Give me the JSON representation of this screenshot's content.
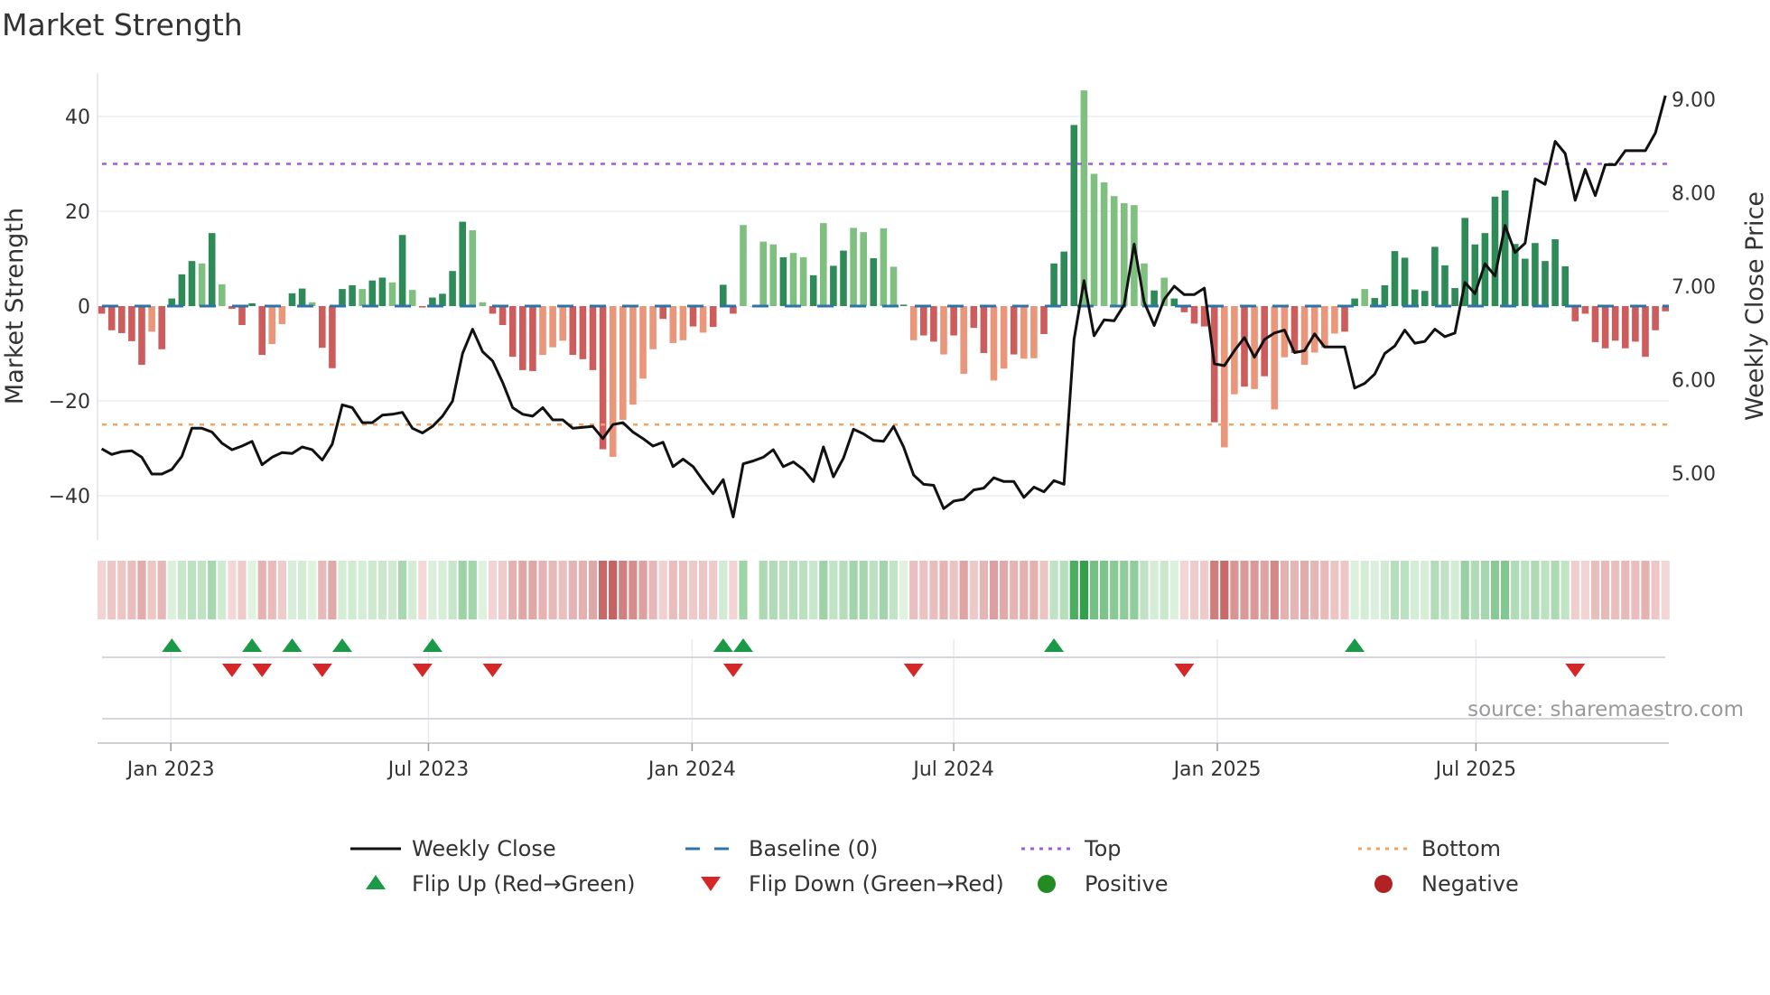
{
  "chart_data": {
    "type": "bar",
    "title": "Market Strength",
    "ylabel": "Market Strength",
    "y2label": "Weekly Close Price",
    "ylim": [
      -50,
      50
    ],
    "y2lim": [
      4.0,
      9.6
    ],
    "yticks": [
      {
        "v": 40,
        "label": "40"
      },
      {
        "v": 20,
        "label": "20"
      },
      {
        "v": 0,
        "label": "0"
      },
      {
        "v": -20,
        "label": "−20"
      },
      {
        "v": -40,
        "label": "−40"
      }
    ],
    "y2ticks": [
      {
        "v": 9,
        "label": "9.00"
      },
      {
        "v": 8,
        "label": "8.00"
      },
      {
        "v": 7,
        "label": "7.00"
      },
      {
        "v": 6,
        "label": "6.00"
      },
      {
        "v": 5,
        "label": "5.00"
      }
    ],
    "xticks": [
      {
        "i": 7.9,
        "label": "Jan 2023"
      },
      {
        "i": 33.6,
        "label": "Jul 2023"
      },
      {
        "i": 59.9,
        "label": "Jan 2024"
      },
      {
        "i": 86.0,
        "label": "Jul 2024"
      },
      {
        "i": 112.3,
        "label": "Jan 2025"
      },
      {
        "i": 138.1,
        "label": "Jul 2025"
      }
    ],
    "top_level": 30,
    "bottom_level": -25,
    "strength": [
      -1.6,
      -5.1,
      -5.7,
      -7.4,
      -12.4,
      -5.4,
      -9.1,
      1.6,
      6.7,
      9.5,
      9.0,
      15.4,
      4.6,
      -0.6,
      -4,
      0.6,
      -10.3,
      -8,
      -3.8,
      2.7,
      3.7,
      0.8,
      -8.8,
      -13.1,
      3.6,
      4.4,
      3.6,
      5.4,
      6.0,
      5.0,
      15,
      3.4,
      -0.3,
      1.8,
      2.6,
      7.4,
      17.8,
      16,
      0.8,
      -1.6,
      -4,
      -10.7,
      -13.5,
      -13.7,
      -10.3,
      -8.7,
      -7.3,
      -10.3,
      -11.2,
      -13.5,
      -30.2,
      -31.8,
      -24,
      -20.8,
      -15.3,
      -9.1,
      -2.7,
      -7.8,
      -7.2,
      -4.3,
      -5.6,
      -4.4,
      4.5,
      -1.6,
      17.1,
      0,
      13.6,
      13,
      10.3,
      11.2,
      10.3,
      6.5,
      17.5,
      8.5,
      11.7,
      16.5,
      15.6,
      10.1,
      16.4,
      8.3,
      0.3,
      -7.2,
      -6.2,
      -7.5,
      -10.2,
      -6.2,
      -14.3,
      -4.6,
      -9.9,
      -15.7,
      -13.2,
      -10.2,
      -11.1,
      -11,
      -5.9,
      9,
      11.5,
      38.2,
      45.5,
      27.9,
      26.1,
      23.2,
      21.7,
      21.3,
      9,
      3.3,
      6,
      1.6,
      -1.3,
      -3.7,
      -4.3,
      -24.5,
      -29.8,
      -18.6,
      -17,
      -17.5,
      -14.8,
      -21.8,
      -10.8,
      -9.9,
      -12.4,
      -9.8,
      -8.8,
      -5.8,
      -5.4,
      1.6,
      3.6,
      1.7,
      4.4,
      11.6,
      10.2,
      3.5,
      3.2,
      12.5,
      8.6,
      3.8,
      18.6,
      13,
      15.4,
      23.1,
      24.4,
      13.1,
      10,
      13.3,
      9.5,
      14.1,
      8.4,
      -3.2,
      -1.6,
      -7.6,
      -8.9,
      -7.3,
      -8.9,
      -7.5,
      -10.7,
      -5.1,
      -1.1
    ],
    "shade": "dddddldddd",
    "shade_rest": "ldlddddllddlddddlddldldddddlldddddlllddddllllldlldldddlllldlldlddlldlldlddldlddlldllddddllllllldldddddlldldlldllllddldd",
    "weekly_close": [
      5.26,
      5.2,
      5.23,
      5.24,
      5.17,
      4.99,
      4.99,
      5.04,
      5.18,
      5.48,
      5.48,
      5.44,
      5.32,
      5.25,
      5.29,
      5.34,
      5.09,
      5.17,
      5.22,
      5.21,
      5.28,
      5.25,
      5.14,
      5.31,
      5.73,
      5.7,
      5.54,
      5.54,
      5.62,
      5.63,
      5.65,
      5.48,
      5.43,
      5.5,
      5.61,
      5.77,
      6.28,
      6.54,
      6.3,
      6.2,
      5.97,
      5.7,
      5.63,
      5.61,
      5.7,
      5.57,
      5.57,
      5.48,
      5.49,
      5.5,
      5.37,
      5.52,
      5.54,
      5.44,
      5.37,
      5.29,
      5.33,
      5.07,
      5.15,
      5.07,
      4.92,
      4.78,
      4.93,
      4.53,
      5.1,
      5.13,
      5.17,
      5.25,
      5.07,
      5.12,
      5.04,
      4.91,
      5.28,
      4.96,
      5.16,
      5.47,
      5.42,
      5.35,
      5.34,
      5.5,
      5.28,
      4.98,
      4.88,
      4.87,
      4.62,
      4.7,
      4.72,
      4.82,
      4.84,
      4.95,
      4.91,
      4.91,
      4.74,
      4.85,
      4.8,
      4.92,
      4.88,
      6.43,
      7.06,
      6.47,
      6.64,
      6.63,
      6.8,
      7.45,
      6.83,
      6.58,
      6.86,
      7.0,
      6.91,
      6.91,
      6.98,
      6.17,
      6.15,
      6.31,
      6.45,
      6.24,
      6.43,
      6.5,
      6.53,
      6.29,
      6.31,
      6.49,
      6.35,
      6.35,
      6.35,
      5.91,
      5.96,
      6.06,
      6.28,
      6.36,
      6.53,
      6.39,
      6.41,
      6.54,
      6.46,
      6.5,
      7.04,
      6.92,
      7.24,
      7.11,
      7.65,
      7.36,
      7.46,
      8.15,
      8.09,
      8.55,
      8.42,
      7.92,
      8.25,
      7.97,
      8.3,
      8.3,
      8.45,
      8.45,
      8.45,
      8.64,
      9.04
    ],
    "flip_up": [
      8,
      16,
      20,
      25,
      34,
      63,
      65,
      96,
      126
    ],
    "flip_down": [
      14,
      17,
      23,
      33,
      40,
      64,
      82,
      109,
      148
    ],
    "colors": {
      "pos_strong": "#2e8b57",
      "pos_weak": "#7fbf7f",
      "neg_strong": "#cd5c5c",
      "neg_weak": "#e9967a",
      "baseline": "#2c74a8",
      "top": "#9b5de5",
      "bottom": "#f4a261",
      "close": "#111111",
      "flip_up": "#1a9a46",
      "flip_down": "#d62728",
      "positive": "#228b22",
      "negative": "#b22222"
    },
    "legend": [
      {
        "key": "close",
        "label": "Weekly Close"
      },
      {
        "key": "baseline",
        "label": "Baseline (0)"
      },
      {
        "key": "top",
        "label": "Top"
      },
      {
        "key": "bottom",
        "label": "Bottom"
      },
      {
        "key": "flip_up",
        "label": "Flip Up (Red→Green)"
      },
      {
        "key": "flip_down",
        "label": "Flip Down (Green→Red)"
      },
      {
        "key": "positive",
        "label": "Positive"
      },
      {
        "key": "negative",
        "label": "Negative"
      }
    ],
    "legend_placement": "bottom",
    "grid": true
  },
  "source": "source: sharemaestro.com"
}
